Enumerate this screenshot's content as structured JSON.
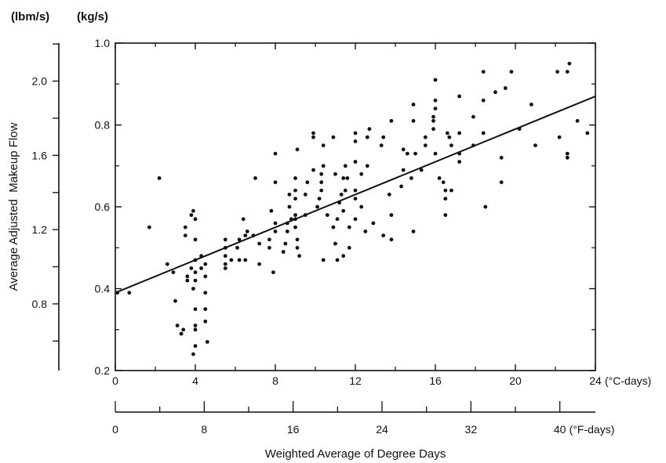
{
  "chart_data": {
    "type": "scatter",
    "title": "",
    "xlabel": "Weighted Average of Degree Days",
    "ylabel": "Average Adjusted  Makeup Flow",
    "x_unit_primary": "(°C-days)",
    "x_unit_secondary": "(°F-days)",
    "y_unit_primary": "(kg/s)",
    "y_unit_secondary": "(lbm/s)",
    "xlim": [
      0,
      24
    ],
    "ylim": [
      0.2,
      1.0
    ],
    "x_ticks_primary": [
      "0",
      "4",
      "8",
      "12",
      "16",
      "20",
      "24"
    ],
    "y_ticks_primary": [
      "0.2",
      "0.4",
      "0.6",
      "0.8",
      "1.0"
    ],
    "x_ticks_secondary": [
      {
        "value": 0,
        "label": "0"
      },
      {
        "value": 8,
        "label": "8"
      },
      {
        "value": 16,
        "label": "16"
      },
      {
        "value": 24,
        "label": "24"
      },
      {
        "value": 32,
        "label": "32"
      },
      {
        "value": 40,
        "label": "40"
      }
    ],
    "y_ticks_secondary": [
      {
        "value": 0.8,
        "label": "0.8"
      },
      {
        "value": 1.2,
        "label": "1.2"
      },
      {
        "value": 1.6,
        "label": "1.6"
      },
      {
        "value": 2.0,
        "label": "2.0"
      }
    ],
    "grid": false,
    "fit_line": {
      "x": [
        0,
        24
      ],
      "y": [
        0.39,
        0.87
      ]
    },
    "points": [
      [
        0.1,
        0.39
      ],
      [
        0.7,
        0.39
      ],
      [
        1.7,
        0.55
      ],
      [
        2.2,
        0.67
      ],
      [
        2.6,
        0.46
      ],
      [
        2.9,
        0.44
      ],
      [
        3.0,
        0.37
      ],
      [
        3.1,
        0.31
      ],
      [
        3.3,
        0.29
      ],
      [
        3.4,
        0.3
      ],
      [
        3.5,
        0.53
      ],
      [
        3.5,
        0.55
      ],
      [
        3.6,
        0.42
      ],
      [
        3.6,
        0.43
      ],
      [
        3.8,
        0.45
      ],
      [
        3.8,
        0.58
      ],
      [
        3.9,
        0.59
      ],
      [
        3.9,
        0.24
      ],
      [
        3.9,
        0.4
      ],
      [
        4.0,
        0.42
      ],
      [
        4.0,
        0.44
      ],
      [
        4.0,
        0.47
      ],
      [
        4.0,
        0.52
      ],
      [
        4.0,
        0.57
      ],
      [
        4.0,
        0.31
      ],
      [
        4.0,
        0.35
      ],
      [
        4.0,
        0.26
      ],
      [
        4.0,
        0.3
      ],
      [
        4.3,
        0.48
      ],
      [
        4.3,
        0.45
      ],
      [
        4.5,
        0.46
      ],
      [
        4.5,
        0.43
      ],
      [
        4.5,
        0.39
      ],
      [
        4.5,
        0.32
      ],
      [
        4.5,
        0.35
      ],
      [
        4.6,
        0.27
      ],
      [
        5.5,
        0.45
      ],
      [
        5.5,
        0.48
      ],
      [
        5.5,
        0.5
      ],
      [
        5.5,
        0.46
      ],
      [
        5.5,
        0.52
      ],
      [
        5.8,
        0.47
      ],
      [
        6.1,
        0.5
      ],
      [
        6.2,
        0.52
      ],
      [
        6.2,
        0.47
      ],
      [
        6.4,
        0.57
      ],
      [
        6.5,
        0.53
      ],
      [
        6.5,
        0.47
      ],
      [
        6.6,
        0.54
      ],
      [
        6.9,
        0.53
      ],
      [
        7.0,
        0.67
      ],
      [
        7.2,
        0.51
      ],
      [
        7.2,
        0.46
      ],
      [
        7.7,
        0.52
      ],
      [
        7.7,
        0.5
      ],
      [
        7.8,
        0.59
      ],
      [
        7.9,
        0.44
      ],
      [
        8.0,
        0.54
      ],
      [
        8.0,
        0.56
      ],
      [
        8.0,
        0.66
      ],
      [
        8.0,
        0.73
      ],
      [
        8.4,
        0.49
      ],
      [
        8.5,
        0.51
      ],
      [
        8.6,
        0.54
      ],
      [
        8.6,
        0.56
      ],
      [
        8.7,
        0.6
      ],
      [
        8.7,
        0.63
      ],
      [
        8.8,
        0.57
      ],
      [
        9.0,
        0.55
      ],
      [
        9.0,
        0.57
      ],
      [
        9.0,
        0.58
      ],
      [
        9.0,
        0.62
      ],
      [
        9.0,
        0.64
      ],
      [
        9.0,
        0.67
      ],
      [
        9.1,
        0.74
      ],
      [
        9.1,
        0.5
      ],
      [
        9.1,
        0.52
      ],
      [
        9.2,
        0.48
      ],
      [
        9.5,
        0.58
      ],
      [
        9.5,
        0.63
      ],
      [
        9.6,
        0.66
      ],
      [
        9.9,
        0.77
      ],
      [
        9.9,
        0.78
      ],
      [
        9.9,
        0.69
      ],
      [
        10.1,
        0.6
      ],
      [
        10.2,
        0.62
      ],
      [
        10.3,
        0.64
      ],
      [
        10.3,
        0.66
      ],
      [
        10.3,
        0.68
      ],
      [
        10.4,
        0.7
      ],
      [
        10.4,
        0.75
      ],
      [
        10.4,
        0.47
      ],
      [
        10.6,
        0.58
      ],
      [
        10.9,
        0.55
      ],
      [
        10.9,
        0.77
      ],
      [
        11.0,
        0.68
      ],
      [
        11.0,
        0.51
      ],
      [
        11.1,
        0.57
      ],
      [
        11.1,
        0.47
      ],
      [
        11.2,
        0.61
      ],
      [
        11.3,
        0.63
      ],
      [
        11.4,
        0.67
      ],
      [
        11.4,
        0.59
      ],
      [
        11.4,
        0.48
      ],
      [
        11.5,
        0.64
      ],
      [
        11.5,
        0.7
      ],
      [
        11.6,
        0.67
      ],
      [
        11.7,
        0.55
      ],
      [
        11.7,
        0.5
      ],
      [
        12.0,
        0.57
      ],
      [
        12.0,
        0.62
      ],
      [
        12.0,
        0.64
      ],
      [
        12.0,
        0.71
      ],
      [
        12.0,
        0.76
      ],
      [
        12.0,
        0.78
      ],
      [
        12.3,
        0.6
      ],
      [
        12.3,
        0.68
      ],
      [
        12.5,
        0.54
      ],
      [
        12.6,
        0.7
      ],
      [
        12.6,
        0.77
      ],
      [
        12.7,
        0.79
      ],
      [
        12.9,
        0.56
      ],
      [
        13.3,
        0.75
      ],
      [
        13.4,
        0.77
      ],
      [
        13.4,
        0.53
      ],
      [
        13.7,
        0.63
      ],
      [
        13.8,
        0.81
      ],
      [
        13.8,
        0.52
      ],
      [
        13.8,
        0.58
      ],
      [
        14.3,
        0.65
      ],
      [
        14.4,
        0.69
      ],
      [
        14.4,
        0.74
      ],
      [
        14.6,
        0.73
      ],
      [
        14.8,
        0.67
      ],
      [
        14.9,
        0.85
      ],
      [
        14.9,
        0.81
      ],
      [
        14.9,
        0.54
      ],
      [
        15.0,
        0.73
      ],
      [
        15.3,
        0.69
      ],
      [
        15.5,
        0.75
      ],
      [
        15.5,
        0.77
      ],
      [
        15.9,
        0.79
      ],
      [
        15.9,
        0.81
      ],
      [
        15.9,
        0.82
      ],
      [
        16.0,
        0.84
      ],
      [
        16.0,
        0.86
      ],
      [
        16.0,
        0.91
      ],
      [
        16.0,
        0.73
      ],
      [
        16.2,
        0.67
      ],
      [
        16.4,
        0.66
      ],
      [
        16.5,
        0.58
      ],
      [
        16.5,
        0.62
      ],
      [
        16.5,
        0.64
      ],
      [
        16.6,
        0.78
      ],
      [
        16.7,
        0.77
      ],
      [
        16.8,
        0.75
      ],
      [
        16.8,
        0.64
      ],
      [
        17.2,
        0.73
      ],
      [
        17.2,
        0.71
      ],
      [
        17.2,
        0.78
      ],
      [
        17.2,
        0.87
      ],
      [
        17.9,
        0.82
      ],
      [
        17.9,
        0.75
      ],
      [
        18.4,
        0.78
      ],
      [
        18.4,
        0.86
      ],
      [
        18.4,
        0.93
      ],
      [
        18.5,
        0.6
      ],
      [
        19.0,
        0.88
      ],
      [
        19.3,
        0.66
      ],
      [
        19.3,
        0.72
      ],
      [
        19.5,
        0.89
      ],
      [
        19.8,
        0.93
      ],
      [
        20.2,
        0.79
      ],
      [
        20.8,
        0.85
      ],
      [
        21.0,
        0.75
      ],
      [
        22.1,
        0.93
      ],
      [
        22.2,
        0.77
      ],
      [
        22.6,
        0.72
      ],
      [
        22.6,
        0.73
      ],
      [
        22.6,
        0.93
      ],
      [
        22.7,
        0.95
      ],
      [
        23.1,
        0.81
      ],
      [
        23.6,
        0.78
      ]
    ]
  }
}
